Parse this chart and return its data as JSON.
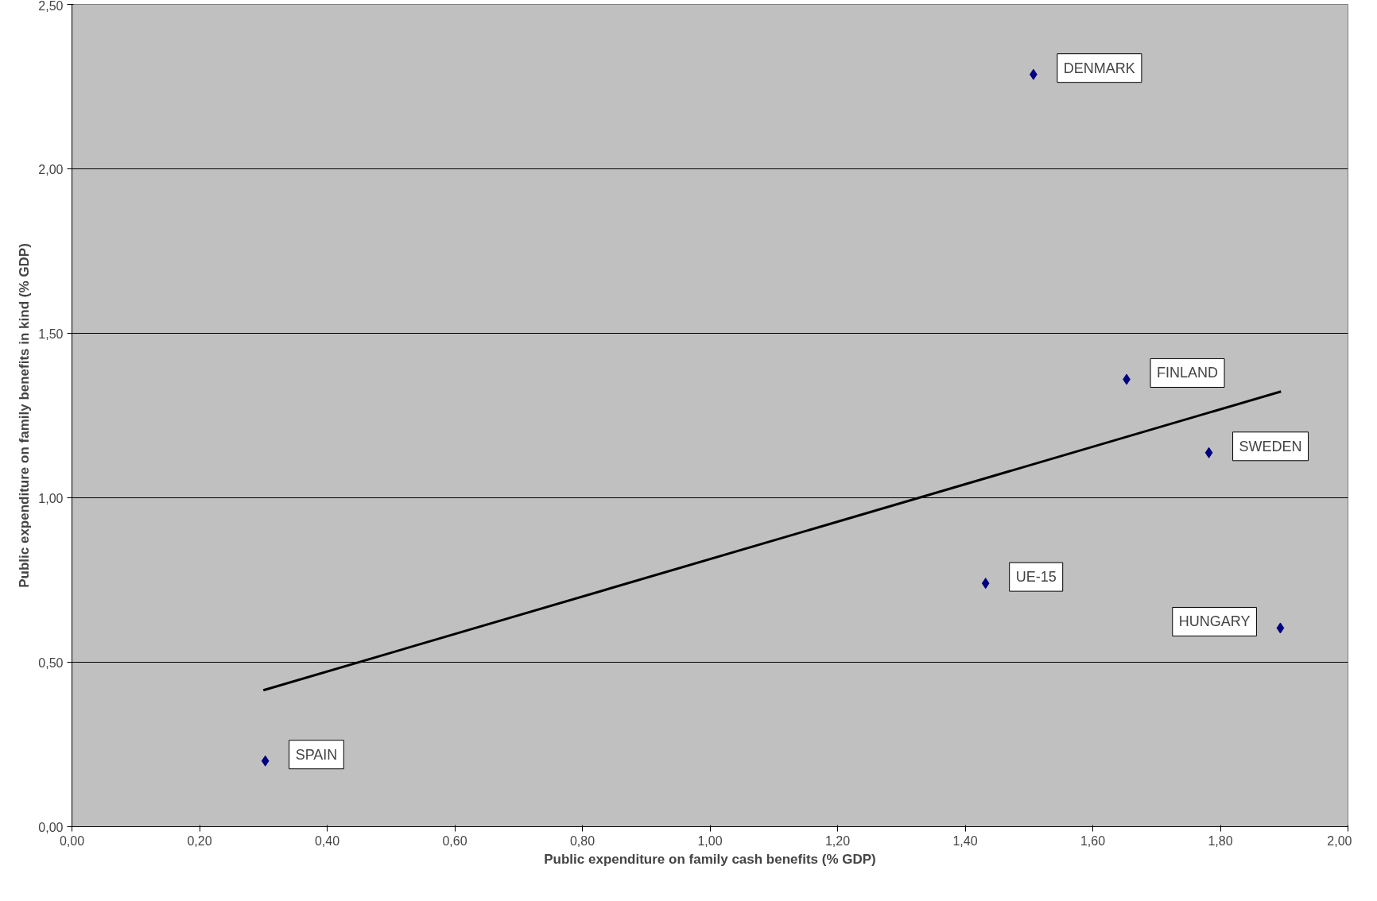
{
  "chart_data": {
    "type": "scatter",
    "xlabel": "Public expenditure on family cash benefits (% GDP)",
    "ylabel": "Public expenditure on family benefits in kind (% GDP)",
    "series": [
      {
        "color": "#000080",
        "marker": "diamond",
        "x": [
          1.507,
          1.653,
          1.782,
          1.432,
          1.894,
          0.303
        ],
        "values": [
          2.287,
          1.36,
          1.137,
          0.74,
          0.604,
          0.2
        ]
      },
      {
        "type": "line",
        "color": "#000000",
        "marker": "none",
        "x": [
          0.3,
          1.895
        ],
        "values": [
          0.415,
          1.323
        ]
      }
    ],
    "annotations": [
      {
        "text": "DENMARK",
        "x": 1.507,
        "y": 2.287
      },
      {
        "text": "FINLAND",
        "x": 1.653,
        "y": 1.36
      },
      {
        "text": "SWEDEN",
        "x": 1.782,
        "y": 1.137
      },
      {
        "text": "UE-15",
        "x": 1.432,
        "y": 0.74
      },
      {
        "text": "HUNGARY",
        "x": 1.894,
        "y": 0.604
      },
      {
        "text": "SPAIN",
        "x": 0.303,
        "y": 0.2
      }
    ],
    "xlim": [
      0,
      2
    ],
    "ylim": [
      0,
      2.5
    ],
    "xticks": [
      {
        "value": 0,
        "label": "0,00"
      },
      {
        "value": 0.2,
        "label": "0,20"
      },
      {
        "value": 0.4,
        "label": "0,40"
      },
      {
        "value": 0.6,
        "label": "0,60"
      },
      {
        "value": 0.8,
        "label": "0,80"
      },
      {
        "value": 1,
        "label": "1,00"
      },
      {
        "value": 1.2,
        "label": "1,20"
      },
      {
        "value": 1.4,
        "label": "1,40"
      },
      {
        "value": 1.6,
        "label": "1,60"
      },
      {
        "value": 1.8,
        "label": "1,80"
      },
      {
        "value": 2,
        "label": "2,00"
      }
    ],
    "yticks": [
      {
        "value": 0,
        "label": "0,00"
      },
      {
        "value": 0.5,
        "label": "0,50"
      },
      {
        "value": 1,
        "label": "1,00"
      },
      {
        "value": 1.5,
        "label": "1,50"
      },
      {
        "value": 2,
        "label": "2,00"
      },
      {
        "value": 2.5,
        "label": "2,50"
      }
    ],
    "grid": "y"
  }
}
